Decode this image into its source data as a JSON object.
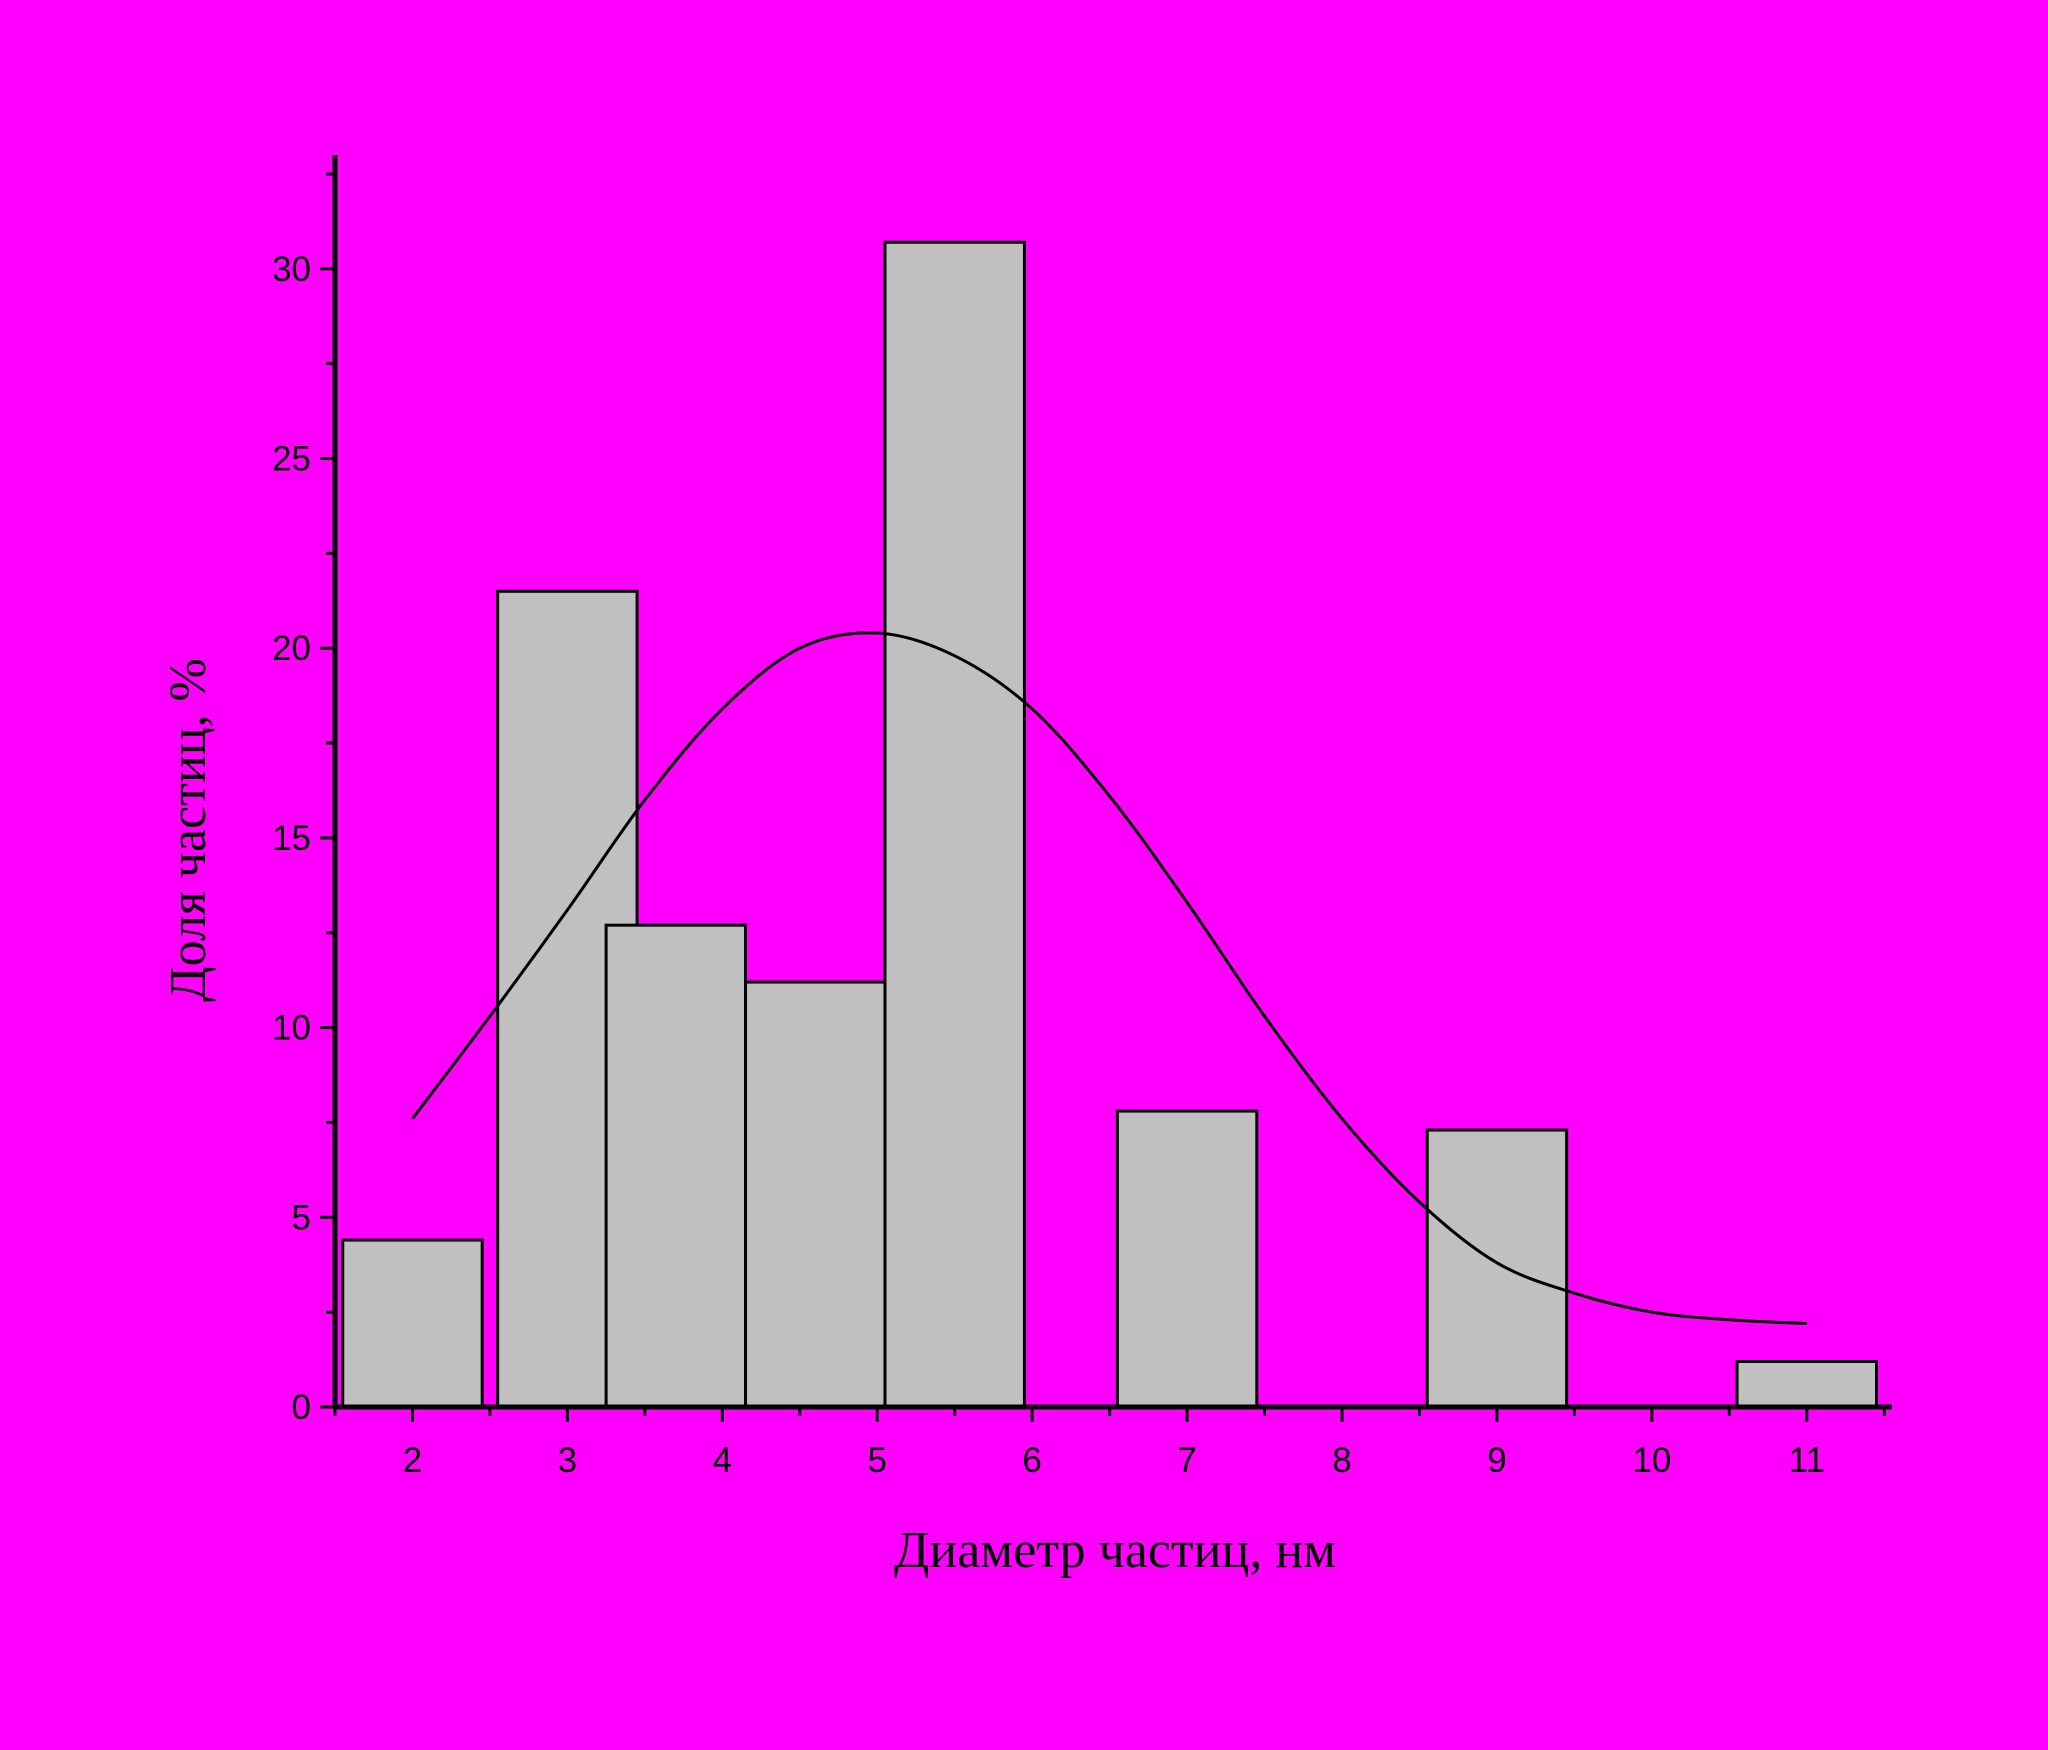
{
  "chart_data": {
    "type": "bar",
    "xlabel": "Диаметр частиц, нм",
    "ylabel": "Доля частиц, %",
    "xlim": [
      1.5,
      11.55
    ],
    "ylim": [
      0,
      33
    ],
    "x_ticks": [
      2,
      3,
      4,
      5,
      6,
      7,
      8,
      9,
      10,
      11
    ],
    "y_ticks": [
      0,
      5,
      10,
      15,
      20,
      25,
      30
    ],
    "x_tick_labels": [
      "2",
      "3",
      "4",
      "5",
      "6",
      "7",
      "8",
      "9",
      "10",
      "11"
    ],
    "y_tick_labels": [
      "0",
      "5",
      "10",
      "15",
      "20",
      "25",
      "30"
    ],
    "bars": [
      {
        "x0": 1.55,
        "x1": 2.45,
        "value": 4.4
      },
      {
        "x0": 2.55,
        "x1": 3.45,
        "value": 21.5
      },
      {
        "x0": 3.25,
        "x1": 4.15,
        "value": 12.7
      },
      {
        "x0": 4.15,
        "x1": 5.05,
        "value": 11.2
      },
      {
        "x0": 5.05,
        "x1": 5.95,
        "value": 30.7
      },
      {
        "x0": 6.55,
        "x1": 7.45,
        "value": 7.8
      },
      {
        "x0": 8.55,
        "x1": 9.45,
        "value": 7.3
      },
      {
        "x0": 10.55,
        "x1": 11.45,
        "value": 1.2
      }
    ],
    "fit_curve": {
      "type": "line",
      "x": [
        2.0,
        2.5,
        3.0,
        3.5,
        4.0,
        4.5,
        5.0,
        5.5,
        6.0,
        6.5,
        7.0,
        7.5,
        8.0,
        8.5,
        9.0,
        9.5,
        10.0,
        10.5,
        11.0
      ],
      "y": [
        7.6,
        10.3,
        13.1,
        16.0,
        18.4,
        20.0,
        20.4,
        19.8,
        18.4,
        16.1,
        13.3,
        10.3,
        7.6,
        5.4,
        3.8,
        3.0,
        2.5,
        2.3,
        2.2
      ]
    },
    "grid": false,
    "legend": "none",
    "colors": {
      "page": "#000000",
      "plot_background": "#FF00FF",
      "bar_fill": "#C0C0C0",
      "stroke": "#000000"
    }
  }
}
